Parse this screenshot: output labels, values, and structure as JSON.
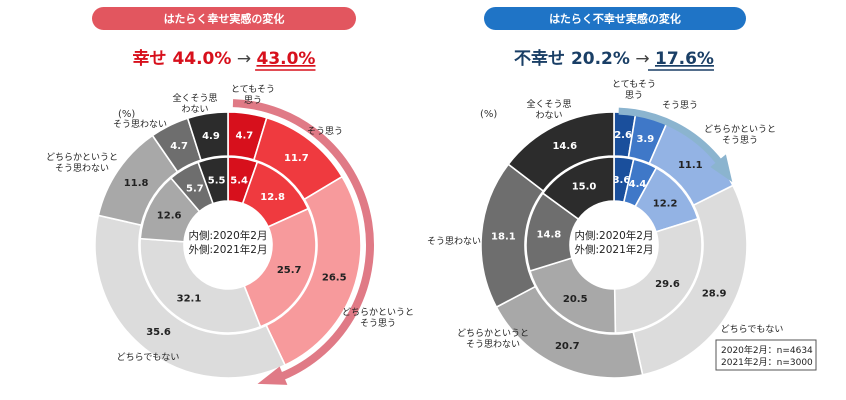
{
  "chart_data": [
    {
      "type": "pie",
      "banner": "はたらく幸せ実感の変化",
      "headline": {
        "label": "幸せ",
        "from": "44.0",
        "to": "43.0",
        "unit": "%",
        "arrow": "→"
      },
      "unit_label": "(%)",
      "center_lines": [
        "内側:2020年2月",
        "外側:2021年2月"
      ],
      "categories": [
        "とてもそう思う",
        "そう思う",
        "どちらかというとそう思う",
        "どちらでもない",
        "どちらかというとそう思わない",
        "そう思わない",
        "全くそう思わない"
      ],
      "category_labels": [
        [
          "とてもそう",
          "思う"
        ],
        [
          "そう思う"
        ],
        [
          "どちらかというと",
          "そう思う"
        ],
        [
          "どちらでもない"
        ],
        [
          "どちらかというと",
          "そう思わない"
        ],
        [
          "そう思わない"
        ],
        [
          "全くそう思",
          "わない"
        ]
      ],
      "series": [
        {
          "name": "2020年2月",
          "values": [
            5.4,
            12.8,
            25.7,
            32.1,
            12.6,
            5.7,
            5.5
          ]
        },
        {
          "name": "2021年2月",
          "values": [
            4.7,
            11.7,
            26.5,
            35.6,
            11.8,
            4.7,
            4.9
          ]
        }
      ],
      "colors": [
        "#d7101c",
        "#ef3a3f",
        "#f79a9c",
        "#dcdcdc",
        "#a8a8a8",
        "#6e6e6e",
        "#2c2c2c"
      ],
      "accent": "#e07a86",
      "headline_color": "#d7101c"
    },
    {
      "type": "pie",
      "banner": "はたらく不幸せ実感の変化",
      "headline": {
        "label": "不幸せ",
        "from": "20.2",
        "to": "17.6",
        "unit": "%",
        "arrow": "→"
      },
      "unit_label": "(%)",
      "center_lines": [
        "内側:2020年2月",
        "外側:2021年2月"
      ],
      "categories": [
        "とてもそう思う",
        "そう思う",
        "どちらかというとそう思う",
        "どちらでもない",
        "どちらかというとそう思わない",
        "そう思わない",
        "全くそう思わない"
      ],
      "category_labels": [
        [
          "とてもそう",
          "思う"
        ],
        [
          "そう思う"
        ],
        [
          "どちらかというと",
          "そう思う"
        ],
        [
          "どちらでもない"
        ],
        [
          "どちらかというと",
          "そう思わない"
        ],
        [
          "そう思わない"
        ],
        [
          "全くそう思",
          "わない"
        ]
      ],
      "series": [
        {
          "name": "2020年2月",
          "values": [
            3.6,
            4.4,
            12.2,
            29.6,
            20.5,
            14.8,
            15.0
          ]
        },
        {
          "name": "2021年2月",
          "values": [
            2.6,
            3.9,
            11.1,
            28.9,
            20.7,
            18.1,
            14.6
          ]
        }
      ],
      "colors": [
        "#1a4f9c",
        "#3f78c8",
        "#93b3e4",
        "#dcdcdc",
        "#a8a8a8",
        "#6e6e6e",
        "#2c2c2c"
      ],
      "accent": "#8bb4cf",
      "headline_color": "#1a3f66",
      "notes": [
        "2020年2月：n=4634",
        "2021年2月：n=3000"
      ]
    }
  ]
}
